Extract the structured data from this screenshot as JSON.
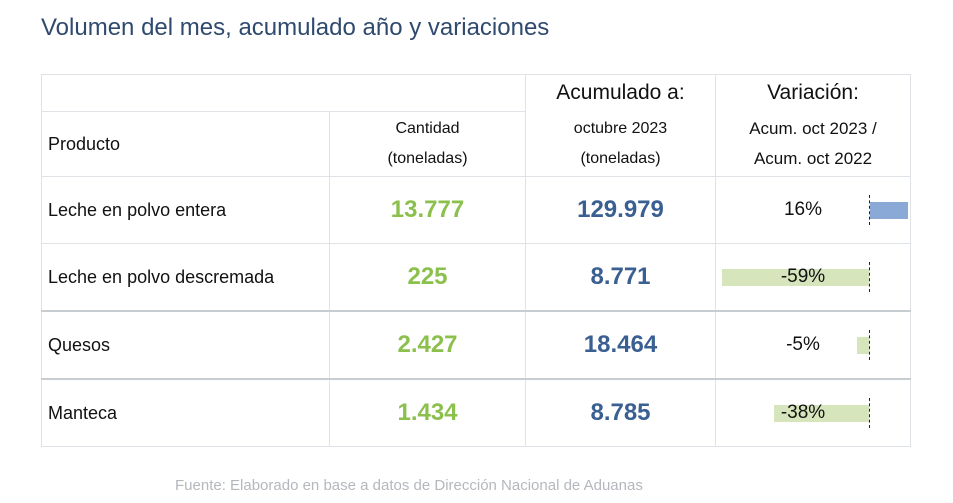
{
  "title": "Volumen del mes, acumulado año y variaciones",
  "header": {
    "producto": "Producto",
    "cantidad_l1": "Cantidad",
    "cantidad_l2": "(toneladas)",
    "acumulado_l1": "Acumulado a:",
    "acumulado_l2": "octubre 2023",
    "acumulado_l3": "(toneladas)",
    "variacion_l1": "Variación:",
    "variacion_l2": "Acum. oct 2023 /",
    "variacion_l3": "Acum. oct 2022"
  },
  "rows": [
    {
      "producto": "Leche en polvo entera",
      "cantidad": "13.777",
      "acumulado": "129.979",
      "variacion": "16%"
    },
    {
      "producto": "Leche en polvo descremada",
      "cantidad": "225",
      "acumulado": "8.771",
      "variacion": "-59%"
    },
    {
      "producto": "Quesos",
      "cantidad": "2.427",
      "acumulado": "18.464",
      "variacion": "-5%"
    },
    {
      "producto": "Manteca",
      "cantidad": "1.434",
      "acumulado": "8.785",
      "variacion": "-38%"
    }
  ],
  "source": "Fuente: Elaborado en base a datos de Dirección Nacional de Aduanas",
  "colors": {
    "title": "#2f4a6e",
    "cantidad": "#8cc04d",
    "acumulado": "#3a5f92",
    "positive_bar": "#8aa9d6",
    "negative_bar": "#d7e5bd"
  },
  "chart_data": {
    "type": "table",
    "categories": [
      "Leche en polvo entera",
      "Leche en polvo descremada",
      "Quesos",
      "Manteca"
    ],
    "series": [
      {
        "name": "Cantidad (toneladas)",
        "values": [
          13777,
          225,
          2427,
          1434
        ]
      },
      {
        "name": "Acumulado a: octubre 2023 (toneladas)",
        "values": [
          129979,
          8771,
          18464,
          8785
        ]
      },
      {
        "name": "Variación: Acum. oct 2023 / Acum. oct 2022",
        "values": [
          16,
          -59,
          -5,
          -38
        ]
      }
    ]
  }
}
